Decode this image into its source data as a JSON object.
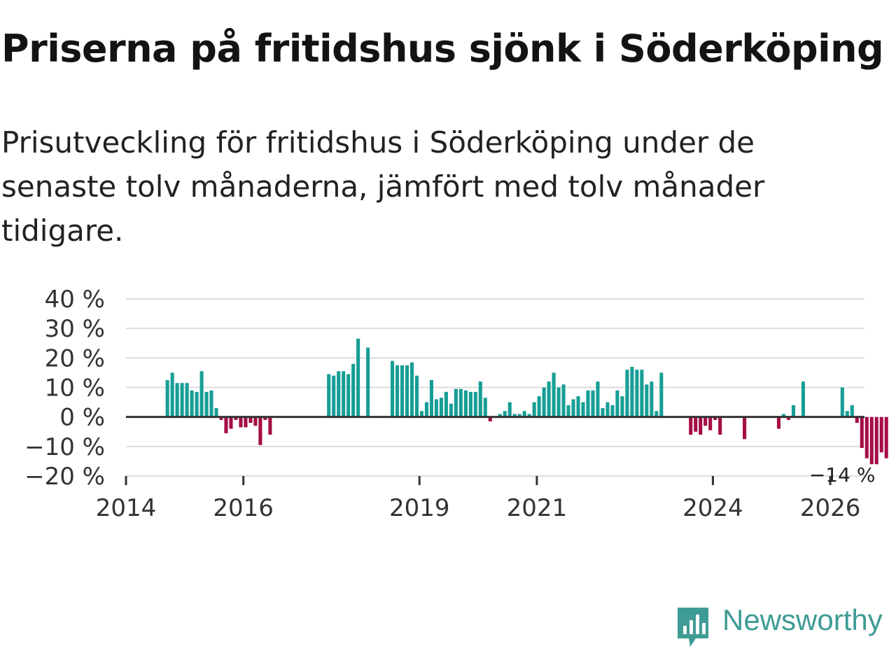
{
  "header": {
    "title": "Priserna på fritidshus sjönk i Söderköping",
    "subtitle": "Prisutveckling för fritidshus i Söderköping under de senaste tolv månaderna, jämfört med tolv månader tidigare."
  },
  "brand": {
    "name": "Newsworthy",
    "icon": "newsworthy-logo-icon"
  },
  "colors": {
    "positive": "#169e96",
    "negative": "#a50d45",
    "grid": "#dcdcdc",
    "zero": "#333333",
    "brand": "#3e9c95"
  },
  "chart_data": {
    "type": "bar",
    "title": "Priserna på fritidshus sjönk i Söderköping",
    "xlabel": "",
    "ylabel": "",
    "ylim": [
      -20,
      40
    ],
    "yticks": [
      40,
      30,
      20,
      10,
      0,
      -10,
      -20
    ],
    "ytick_labels": [
      "40 %",
      "30 %",
      "20 %",
      "10 %",
      "0 %",
      "−10 %",
      "−20 %"
    ],
    "xticks": [
      {
        "year": 2014,
        "label": "2014"
      },
      {
        "year": 2016,
        "label": "2016"
      },
      {
        "year": 2019,
        "label": "2019"
      },
      {
        "year": 2021,
        "label": "2021"
      },
      {
        "year": 2024,
        "label": "2024"
      },
      {
        "year": 2026,
        "label": "2026"
      }
    ],
    "start": "2014-01",
    "end": "2026-08",
    "annotation": {
      "label": "−14 %",
      "index": 139,
      "value": -14
    },
    "series": [
      {
        "name": "Prisutveckling",
        "values": [
          null,
          null,
          null,
          null,
          null,
          null,
          null,
          null,
          12.5,
          15,
          11.5,
          11.5,
          11.5,
          9,
          8.5,
          15.5,
          8.5,
          9,
          3,
          -1,
          -5.5,
          -4,
          -1,
          -3.5,
          -3.5,
          -2,
          -3,
          -9.5,
          -1,
          -6,
          null,
          null,
          null,
          null,
          null,
          null,
          null,
          null,
          null,
          null,
          null,
          14.5,
          14,
          15.5,
          15.5,
          14.5,
          18,
          26.5,
          null,
          23.5,
          null,
          null,
          null,
          null,
          19,
          17.5,
          17.5,
          17.5,
          18.5,
          14,
          2,
          5,
          12.5,
          6,
          6.5,
          8.5,
          4.5,
          9.5,
          9.5,
          9,
          8.5,
          8.5,
          12,
          6.5,
          -1.5,
          null,
          1,
          2,
          5,
          1,
          1,
          2,
          1,
          5,
          7,
          10,
          12,
          15,
          10,
          11,
          4,
          6,
          7,
          5,
          9,
          9,
          12,
          3,
          5,
          4,
          9,
          7,
          16,
          17,
          16,
          16,
          11,
          12,
          2,
          15,
          null,
          null,
          null,
          null,
          null,
          -6,
          -5,
          -6,
          -3,
          -4.5,
          -1,
          -6,
          null,
          null,
          null,
          null,
          -7.5,
          null,
          null,
          null,
          null,
          null,
          null,
          -4,
          1,
          -1,
          4,
          null,
          12,
          null,
          null,
          null,
          null,
          null,
          null,
          null,
          10,
          2,
          4,
          -2,
          -10.5,
          -14,
          -16,
          -16,
          -12,
          -14,
          null,
          null,
          null,
          null,
          null,
          null
        ]
      }
    ]
  }
}
